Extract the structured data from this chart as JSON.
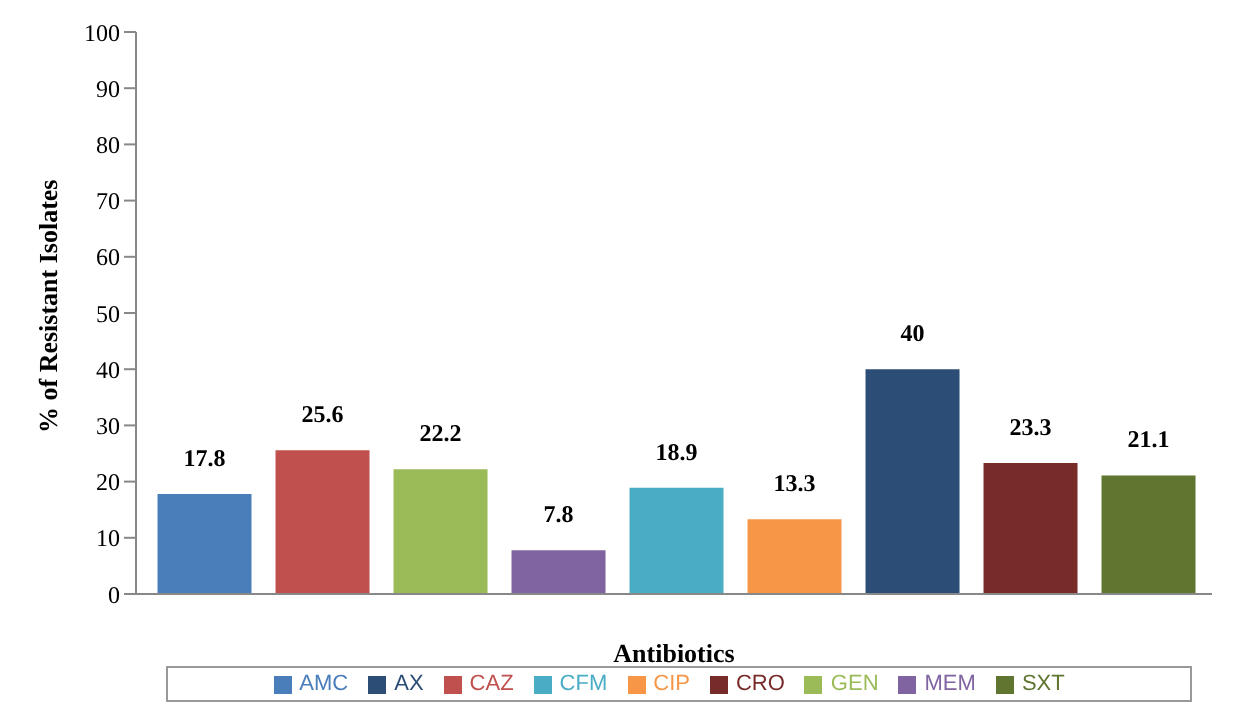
{
  "chart_data": {
    "type": "bar",
    "xlabel": "Antibiotics",
    "ylabel": "% of Resistant Isolates",
    "categories": [
      null
    ],
    "series": [
      {
        "name": "AMC",
        "color": "#4a7ebb",
        "values": [
          17.8
        ]
      },
      {
        "name": "CAZ",
        "color": "#c0504d",
        "values": [
          25.6
        ]
      },
      {
        "name": "GEN",
        "color": "#9bbb59",
        "values": [
          22.2
        ]
      },
      {
        "name": "MEM",
        "color": "#8064a2",
        "values": [
          7.8
        ]
      },
      {
        "name": "CFM",
        "color": "#4bacc6",
        "values": [
          18.9
        ]
      },
      {
        "name": "CIP",
        "color": "#f79646",
        "values": [
          13.3
        ]
      },
      {
        "name": "AX",
        "color": "#2c4d75",
        "values": [
          40
        ]
      },
      {
        "name": "CRO",
        "color": "#772c2a",
        "values": [
          23.3
        ]
      },
      {
        "name": "SXT",
        "color": "#5f7530",
        "values": [
          21.1
        ]
      }
    ],
    "ylim": [
      0,
      100
    ],
    "yticks": [
      0,
      10,
      20,
      30,
      40,
      50,
      60,
      70,
      80,
      90,
      100
    ],
    "grid": false,
    "legend": "bottom",
    "data_labels": true,
    "tick_labels": "y"
  }
}
